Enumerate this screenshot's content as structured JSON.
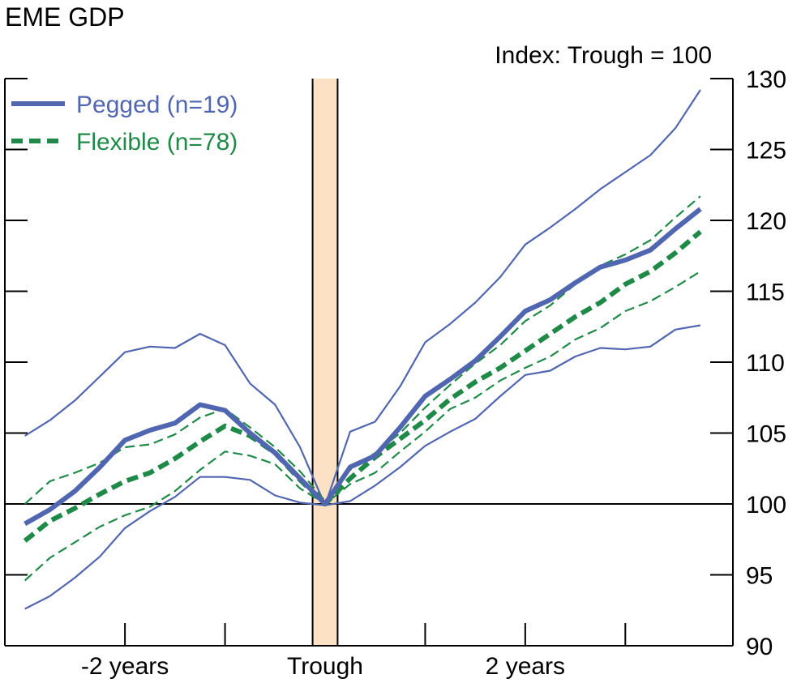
{
  "chart_data": {
    "type": "line",
    "title": "EME GDP",
    "subtitle": "Index: Trough = 100",
    "x": [
      -12,
      -11,
      -10,
      -9,
      -8,
      -7,
      -6,
      -5,
      -4,
      -3,
      -2,
      -1,
      0,
      1,
      2,
      3,
      4,
      5,
      6,
      7,
      8,
      9,
      10,
      11,
      12,
      13,
      14,
      15,
      16
    ],
    "ylim": [
      90,
      130
    ],
    "yticks": [
      90,
      95,
      100,
      105,
      110,
      115,
      120,
      125,
      130
    ],
    "xtick_labels": [
      {
        "x": -8,
        "label": "-2 years"
      },
      {
        "x": 0,
        "label": "Trough"
      },
      {
        "x": 8,
        "label": "2 years"
      }
    ],
    "xticks": [
      -8,
      -4,
      4,
      8,
      12
    ],
    "shaded_region": {
      "from": -0.5,
      "to": 0.5,
      "color": "#fde1c4"
    },
    "colors": {
      "pegged": "#5166b0",
      "flexible": "#1f8a47"
    },
    "legend": [
      {
        "label": "Pegged (n=19)",
        "series": "pegged",
        "style": "solid"
      },
      {
        "label": "Flexible (n=78)",
        "series": "flexible",
        "style": "dashed"
      }
    ],
    "legend_position": "top-left",
    "series": [
      {
        "name": "Pegged (n=19)",
        "group": "pegged",
        "role": "median",
        "values": [
          98.6,
          99.6,
          100.9,
          102.6,
          104.5,
          105.2,
          105.7,
          107.0,
          106.6,
          105.0,
          103.6,
          101.8,
          100.0,
          102.6,
          103.4,
          105.4,
          107.6,
          108.8,
          110.1,
          111.8,
          113.6,
          114.4,
          115.6,
          116.7,
          117.2,
          117.9,
          119.4,
          120.8,
          null
        ]
      },
      {
        "name": "",
        "group": "pegged",
        "role": "upper",
        "values": [
          104.8,
          105.9,
          107.3,
          109.0,
          110.7,
          111.1,
          111.0,
          112.0,
          111.2,
          108.5,
          107.0,
          104.0,
          99.9,
          105.1,
          105.8,
          108.3,
          111.4,
          112.7,
          114.2,
          116.0,
          118.3,
          119.5,
          120.8,
          122.2,
          123.4,
          124.6,
          126.5,
          129.2,
          null
        ]
      },
      {
        "name": "",
        "group": "pegged",
        "role": "lower",
        "values": [
          92.6,
          93.5,
          94.8,
          96.3,
          98.3,
          99.5,
          100.5,
          101.9,
          101.9,
          101.7,
          100.6,
          100.1,
          99.9,
          100.2,
          101.3,
          102.6,
          104.1,
          105.1,
          106.0,
          107.6,
          109.1,
          109.4,
          110.4,
          111.0,
          110.9,
          111.1,
          112.3,
          112.6,
          null
        ]
      },
      {
        "name": "Flexible (n=78)",
        "group": "flexible",
        "role": "median",
        "values": [
          97.4,
          98.8,
          99.7,
          100.7,
          101.6,
          102.2,
          103.2,
          104.4,
          105.5,
          104.8,
          103.6,
          101.7,
          100.0,
          101.8,
          103.3,
          104.6,
          105.9,
          107.4,
          108.6,
          109.6,
          110.8,
          112.0,
          113.2,
          114.2,
          115.5,
          116.4,
          117.7,
          119.2,
          null
        ]
      },
      {
        "name": "",
        "group": "flexible",
        "role": "upper",
        "values": [
          100.0,
          101.6,
          102.2,
          102.9,
          104.0,
          104.2,
          104.9,
          106.1,
          106.7,
          105.4,
          104.0,
          102.3,
          100.2,
          102.4,
          103.6,
          105.0,
          106.8,
          108.4,
          109.9,
          111.2,
          112.9,
          114.0,
          115.5,
          116.8,
          117.6,
          118.6,
          120.2,
          121.7,
          null
        ]
      },
      {
        "name": "",
        "group": "flexible",
        "role": "lower",
        "values": [
          94.6,
          96.2,
          97.3,
          98.4,
          99.2,
          99.8,
          100.9,
          102.4,
          103.7,
          103.4,
          102.8,
          101.1,
          100.0,
          101.4,
          102.2,
          103.7,
          105.1,
          106.7,
          107.5,
          108.7,
          109.6,
          110.4,
          111.6,
          112.4,
          113.6,
          114.3,
          115.3,
          116.4,
          null
        ]
      }
    ]
  }
}
